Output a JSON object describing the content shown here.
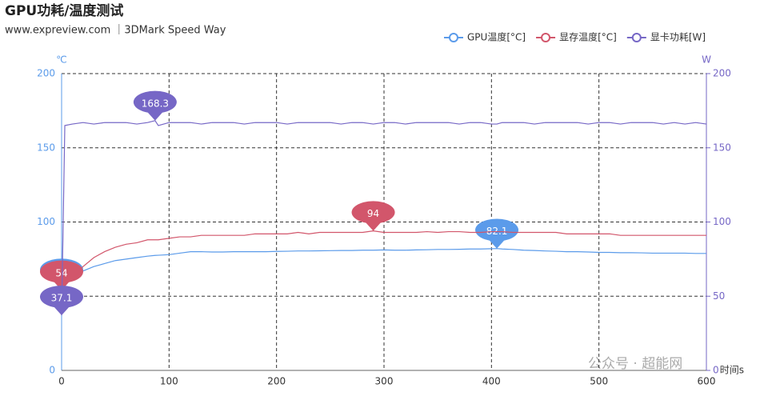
{
  "chart_data": {
    "type": "line",
    "title": "GPU功耗/温度测试",
    "subtitle": "www.expreview.com ｜3DMark Speed Way",
    "ylabel": "℃",
    "y2label": "W",
    "xlabel": "时间s",
    "watermark": "公众号 · 超能网",
    "x": [
      0,
      3,
      10,
      20,
      30,
      40,
      50,
      60,
      70,
      80,
      87,
      90,
      100,
      110,
      120,
      130,
      140,
      150,
      160,
      170,
      180,
      190,
      200,
      210,
      220,
      230,
      240,
      250,
      260,
      270,
      280,
      290,
      300,
      310,
      320,
      330,
      340,
      350,
      360,
      370,
      380,
      390,
      400,
      405,
      410,
      420,
      430,
      440,
      450,
      460,
      470,
      480,
      490,
      500,
      510,
      520,
      530,
      540,
      550,
      560,
      570,
      580,
      590,
      600
    ],
    "xlim": [
      0,
      600
    ],
    "xticks": [
      0,
      100,
      200,
      300,
      400,
      500,
      600
    ],
    "ylim": [
      0,
      200
    ],
    "yticks": [
      0,
      50,
      100,
      150,
      200
    ],
    "y2lim": [
      0,
      200
    ],
    "y2ticks": [
      0,
      50,
      100,
      150,
      200
    ],
    "grid": true,
    "legend": "top-right",
    "mark_points": [
      "max",
      "min"
    ],
    "series": [
      {
        "name": "GPU温度[°C]",
        "color": "#5b9bea",
        "values": [
          55.3,
          58,
          63,
          67,
          70,
          72,
          74,
          75,
          76,
          77,
          77.5,
          77.6,
          78,
          79,
          80,
          80,
          79.8,
          79.8,
          80,
          80,
          80,
          80,
          80.2,
          80.3,
          80.5,
          80.5,
          80.6,
          80.7,
          80.8,
          80.8,
          81,
          81,
          81.2,
          81,
          81,
          81.2,
          81.3,
          81.5,
          81.5,
          81.6,
          81.8,
          81.8,
          82,
          82.1,
          81.8,
          81.5,
          81,
          80.8,
          80.5,
          80.3,
          80,
          80,
          79.8,
          79.5,
          79.5,
          79.3,
          79.3,
          79.2,
          79,
          79,
          79,
          79,
          78.8,
          78.8
        ]
      },
      {
        "name": "显存温度[°C]",
        "color": "#d2566b",
        "values": [
          54,
          58,
          62,
          70,
          76,
          80,
          83,
          85,
          86,
          88,
          88,
          88,
          89,
          90,
          90,
          91,
          91,
          91,
          91,
          91,
          92,
          92,
          92,
          92,
          93,
          92,
          93,
          93,
          93,
          93,
          93,
          94,
          93,
          93,
          93,
          93,
          93.5,
          93,
          93.5,
          93.5,
          93,
          93,
          93.5,
          93.5,
          93.5,
          93,
          93,
          93,
          93,
          93,
          92,
          92,
          92,
          92,
          92,
          91,
          91,
          91,
          91,
          91,
          91,
          91,
          91,
          91
        ]
      },
      {
        "name": "显卡功耗[W]",
        "color": "#7667c6",
        "axis": "y2",
        "values": [
          37.1,
          165,
          166,
          167,
          166,
          167,
          167,
          167,
          166,
          167,
          168.3,
          165,
          167,
          167,
          167,
          166,
          167,
          167,
          167,
          166,
          167,
          167,
          167,
          166,
          167,
          167,
          167,
          167,
          166,
          167,
          167,
          166,
          167,
          167,
          166,
          167,
          167,
          167,
          167,
          166,
          167,
          167,
          166,
          166,
          167,
          167,
          167,
          166,
          167,
          167,
          167,
          167,
          166,
          167,
          167,
          166,
          167,
          167,
          167,
          166,
          167,
          166,
          167,
          166
        ]
      }
    ]
  }
}
